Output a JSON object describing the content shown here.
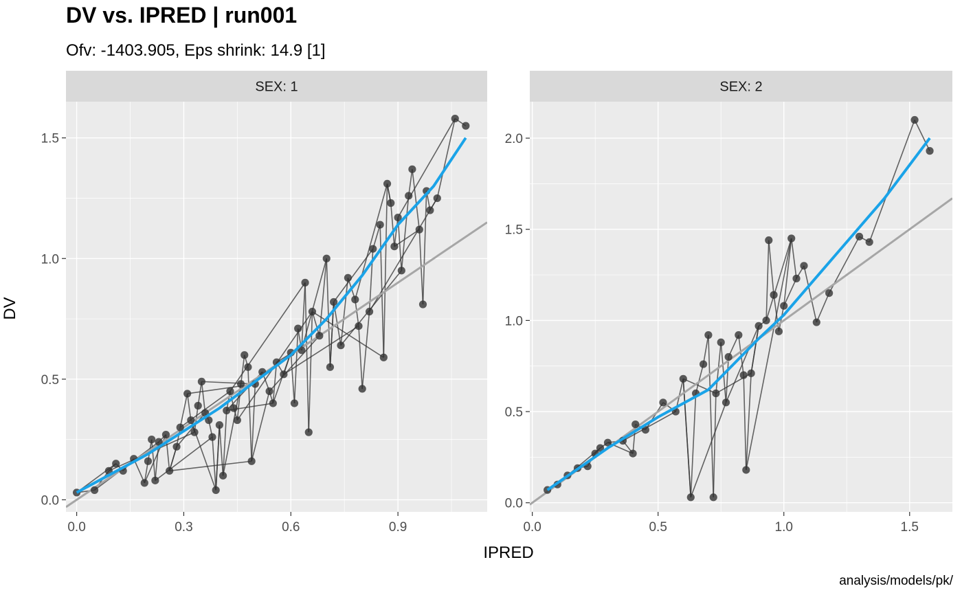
{
  "title": "DV vs. IPRED | run001",
  "subtitle": "Ofv: -1403.905, Eps shrink: 14.9 [1]",
  "caption": "analysis/models/pk/",
  "colors": {
    "panel_bg": "#EBEBEB",
    "strip_bg": "#D9D9D9",
    "grid": "#FFFFFF",
    "points": "#333333",
    "smooth": "#1AA3E8",
    "identity": "#A6A6A6"
  },
  "chart_data": [
    {
      "type": "scatter",
      "title": "SEX: 1",
      "xlabel": "IPRED",
      "ylabel": "DV",
      "xlim": [
        -0.03,
        1.15
      ],
      "ylim": [
        -0.05,
        1.65
      ],
      "xticks": [
        "0.0",
        "0.3",
        "0.6",
        "0.9"
      ],
      "yticks": [
        "0.0",
        "0.5",
        "1.0",
        "1.5"
      ],
      "grid": true,
      "points": [
        [
          0.0,
          0.03
        ],
        [
          0.05,
          0.04
        ],
        [
          0.09,
          0.12
        ],
        [
          0.11,
          0.15
        ],
        [
          0.13,
          0.12
        ],
        [
          0.16,
          0.17
        ],
        [
          0.19,
          0.07
        ],
        [
          0.2,
          0.16
        ],
        [
          0.21,
          0.25
        ],
        [
          0.22,
          0.08
        ],
        [
          0.23,
          0.24
        ],
        [
          0.25,
          0.27
        ],
        [
          0.26,
          0.12
        ],
        [
          0.28,
          0.22
        ],
        [
          0.29,
          0.3
        ],
        [
          0.31,
          0.44
        ],
        [
          0.32,
          0.33
        ],
        [
          0.33,
          0.28
        ],
        [
          0.34,
          0.39
        ],
        [
          0.35,
          0.49
        ],
        [
          0.36,
          0.36
        ],
        [
          0.37,
          0.33
        ],
        [
          0.38,
          0.26
        ],
        [
          0.39,
          0.04
        ],
        [
          0.4,
          0.31
        ],
        [
          0.41,
          0.1
        ],
        [
          0.42,
          0.37
        ],
        [
          0.43,
          0.45
        ],
        [
          0.44,
          0.38
        ],
        [
          0.45,
          0.33
        ],
        [
          0.46,
          0.48
        ],
        [
          0.47,
          0.6
        ],
        [
          0.48,
          0.55
        ],
        [
          0.49,
          0.16
        ],
        [
          0.5,
          0.48
        ],
        [
          0.52,
          0.53
        ],
        [
          0.54,
          0.45
        ],
        [
          0.55,
          0.4
        ],
        [
          0.56,
          0.57
        ],
        [
          0.58,
          0.52
        ],
        [
          0.6,
          0.61
        ],
        [
          0.61,
          0.4
        ],
        [
          0.62,
          0.71
        ],
        [
          0.63,
          0.62
        ],
        [
          0.64,
          0.9
        ],
        [
          0.65,
          0.28
        ],
        [
          0.66,
          0.78
        ],
        [
          0.68,
          0.68
        ],
        [
          0.7,
          1.0
        ],
        [
          0.71,
          0.55
        ],
        [
          0.72,
          0.82
        ],
        [
          0.74,
          0.64
        ],
        [
          0.76,
          0.92
        ],
        [
          0.78,
          0.83
        ],
        [
          0.79,
          0.72
        ],
        [
          0.8,
          0.46
        ],
        [
          0.82,
          0.78
        ],
        [
          0.83,
          1.04
        ],
        [
          0.85,
          1.14
        ],
        [
          0.86,
          0.59
        ],
        [
          0.87,
          1.31
        ],
        [
          0.88,
          1.23
        ],
        [
          0.89,
          1.05
        ],
        [
          0.9,
          1.17
        ],
        [
          0.91,
          0.95
        ],
        [
          0.93,
          1.26
        ],
        [
          0.94,
          1.37
        ],
        [
          0.96,
          1.12
        ],
        [
          0.97,
          0.81
        ],
        [
          0.98,
          1.28
        ],
        [
          0.99,
          1.2
        ],
        [
          1.01,
          1.25
        ],
        [
          1.06,
          1.58
        ],
        [
          1.09,
          1.55
        ]
      ],
      "smooth": [
        [
          0.0,
          0.03
        ],
        [
          0.2,
          0.19
        ],
        [
          0.4,
          0.38
        ],
        [
          0.6,
          0.6
        ],
        [
          0.7,
          0.75
        ],
        [
          0.8,
          0.93
        ],
        [
          0.9,
          1.14
        ],
        [
          1.0,
          1.3
        ],
        [
          1.09,
          1.5
        ]
      ],
      "identity": [
        [
          -0.03,
          -0.03
        ],
        [
          1.15,
          1.15
        ]
      ]
    },
    {
      "type": "scatter",
      "title": "SEX: 2",
      "xlabel": "IPRED",
      "ylabel": "DV",
      "xlim": [
        -0.01,
        1.67
      ],
      "ylim": [
        -0.05,
        2.2
      ],
      "xticks": [
        "0.0",
        "0.5",
        "1.0",
        "1.5"
      ],
      "yticks": [
        "0.0",
        "0.5",
        "1.0",
        "1.5",
        "2.0"
      ],
      "grid": true,
      "points": [
        [
          0.06,
          0.07
        ],
        [
          0.1,
          0.1
        ],
        [
          0.14,
          0.15
        ],
        [
          0.18,
          0.19
        ],
        [
          0.22,
          0.2
        ],
        [
          0.25,
          0.27
        ],
        [
          0.27,
          0.3
        ],
        [
          0.3,
          0.33
        ],
        [
          0.36,
          0.34
        ],
        [
          0.4,
          0.27
        ],
        [
          0.41,
          0.43
        ],
        [
          0.45,
          0.4
        ],
        [
          0.52,
          0.55
        ],
        [
          0.57,
          0.5
        ],
        [
          0.6,
          0.68
        ],
        [
          0.63,
          0.03
        ],
        [
          0.65,
          0.6
        ],
        [
          0.68,
          0.76
        ],
        [
          0.7,
          0.92
        ],
        [
          0.72,
          0.03
        ],
        [
          0.73,
          0.6
        ],
        [
          0.75,
          0.88
        ],
        [
          0.77,
          0.55
        ],
        [
          0.78,
          0.8
        ],
        [
          0.82,
          0.92
        ],
        [
          0.84,
          0.7
        ],
        [
          0.85,
          0.18
        ],
        [
          0.87,
          0.71
        ],
        [
          0.9,
          0.97
        ],
        [
          0.93,
          1.0
        ],
        [
          0.94,
          1.44
        ],
        [
          0.96,
          1.14
        ],
        [
          0.98,
          0.94
        ],
        [
          1.0,
          1.08
        ],
        [
          1.03,
          1.45
        ],
        [
          1.05,
          1.23
        ],
        [
          1.08,
          1.3
        ],
        [
          1.13,
          0.99
        ],
        [
          1.18,
          1.15
        ],
        [
          1.3,
          1.46
        ],
        [
          1.34,
          1.43
        ],
        [
          1.52,
          2.1
        ],
        [
          1.58,
          1.93
        ]
      ],
      "smooth": [
        [
          0.06,
          0.07
        ],
        [
          0.3,
          0.3
        ],
        [
          0.5,
          0.47
        ],
        [
          0.7,
          0.62
        ],
        [
          0.8,
          0.76
        ],
        [
          0.9,
          0.9
        ],
        [
          1.0,
          1.03
        ],
        [
          1.2,
          1.35
        ],
        [
          1.4,
          1.67
        ],
        [
          1.58,
          2.0
        ]
      ],
      "identity": [
        [
          -0.01,
          -0.01
        ],
        [
          1.67,
          1.67
        ]
      ]
    }
  ]
}
